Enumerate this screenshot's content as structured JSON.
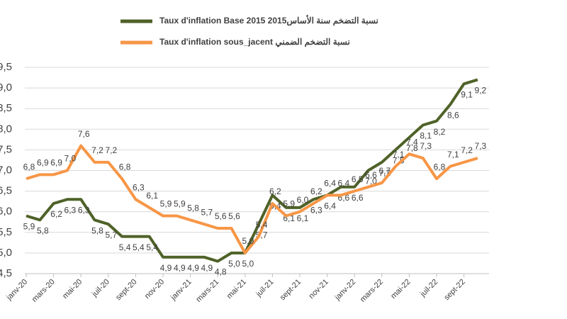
{
  "chart_data": {
    "type": "line",
    "categories": [
      "janv-20",
      null,
      "mars-20",
      null,
      "mai-20",
      null,
      "juil-20",
      null,
      "sept-20",
      null,
      "nov-20",
      null,
      "janv-21",
      null,
      "mars-21",
      null,
      "mai-21",
      null,
      "juil-21",
      null,
      "sept-21",
      null,
      "nov-21",
      null,
      "janv-22",
      null,
      "mars-22",
      null,
      "mai-22",
      null,
      "juil-22",
      null,
      "sept-22",
      null
    ],
    "series": [
      {
        "name": "Taux d'inflation Base 2015 2015نسبة التضخم سنة الأساس",
        "color": "#4f6228",
        "values": [
          5.9,
          5.8,
          6.2,
          6.3,
          6.3,
          5.8,
          5.7,
          5.4,
          5.4,
          5.4,
          4.9,
          4.9,
          4.9,
          4.9,
          4.8,
          5.0,
          5.0,
          5.7,
          6.4,
          6.1,
          6.1,
          6.3,
          6.4,
          6.6,
          6.6,
          7.0,
          7.2,
          7.5,
          7.8,
          8.1,
          8.2,
          8.6,
          9.1,
          9.2
        ],
        "value_labels": [
          "5,9",
          "5,8",
          "6,2",
          "6,3",
          "6,3",
          "5,8",
          "5,7",
          "5,4",
          "5,4",
          "5,4",
          "4,9",
          "4,9",
          "4,9",
          "4,9",
          "4,8",
          "5,0",
          "5,0",
          "5,7",
          "6,4",
          "6,1",
          "6,1",
          "6,3",
          "6,4",
          "6,6",
          "6,6",
          "7,0",
          "7,2",
          "7,5",
          "7,8",
          "8,1",
          "8,2",
          "8,6",
          "9,1",
          "9,2"
        ]
      },
      {
        "name": "Taux d'inflation sous_jacent نسبة التضخم الضمني",
        "color": "#f79646",
        "values": [
          6.8,
          6.9,
          6.9,
          7.0,
          7.6,
          7.2,
          7.2,
          6.8,
          6.3,
          6.1,
          5.9,
          5.9,
          5.8,
          5.7,
          5.6,
          5.6,
          5.0,
          5.4,
          6.2,
          5.9,
          6.0,
          6.2,
          6.4,
          6.4,
          6.5,
          6.6,
          6.7,
          7.1,
          7.4,
          7.3,
          6.8,
          7.1,
          7.2,
          7.3
        ],
        "value_labels": [
          "6,8",
          "6,9",
          "6,9",
          "7,0",
          "7,6",
          "7,2",
          "7,2",
          "6,8",
          "6,3",
          "6,1",
          "5,9",
          "5,9",
          "5,8",
          "5,7",
          "5,6",
          "5,6",
          "5,0",
          "5,4",
          "6,2",
          "5,9",
          "6,0",
          "6,2",
          "6,4",
          "6,4",
          "6,5",
          "6,6",
          "6,7",
          "7,1",
          "7,4",
          "7,3",
          "6,8",
          "7,1",
          "7,2",
          "7,3"
        ]
      }
    ],
    "ylim": [
      4.5,
      9.5
    ],
    "yticks": [
      {
        "value": 4.5,
        "label": "4,5"
      },
      {
        "value": 5,
        "label": "5,0"
      },
      {
        "value": 5.5,
        "label": "5,5"
      },
      {
        "value": 6,
        "label": "6,0"
      },
      {
        "value": 6.5,
        "label": "6,5"
      },
      {
        "value": 7,
        "label": "7,0"
      },
      {
        "value": 7.5,
        "label": "7,5"
      },
      {
        "value": 8,
        "label": "8,0"
      },
      {
        "value": 8.5,
        "label": "8,5"
      },
      {
        "value": 9,
        "label": "9,0"
      },
      {
        "value": 9.5,
        "label": "9,5"
      }
    ],
    "grid": true
  }
}
